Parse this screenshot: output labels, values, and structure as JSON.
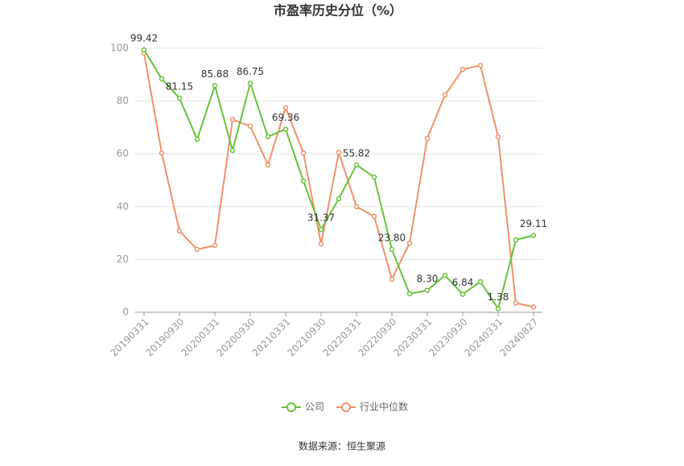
{
  "chart_data": {
    "type": "line",
    "title": "市盈率历史分位（%）",
    "categories": [
      "20190331",
      null,
      "20190930",
      null,
      "20200331",
      null,
      "20200930",
      null,
      "20210331",
      null,
      "20210930",
      null,
      "20220331",
      null,
      "20220930",
      null,
      "20230331",
      null,
      "20230930",
      null,
      "20240331",
      null,
      "20240827"
    ],
    "series": [
      {
        "name": "公司",
        "color": "#67c23a",
        "values": [
          99.42,
          88.4,
          81.15,
          65.5,
          85.88,
          61.3,
          86.75,
          66.5,
          69.36,
          49.7,
          31.37,
          43,
          55.82,
          51.2,
          23.8,
          7,
          8.3,
          14,
          6.84,
          11.6,
          1.38,
          27.4,
          29.11
        ],
        "value_labels": [
          "99.42",
          null,
          "81.15",
          null,
          "85.88",
          null,
          "86.75",
          null,
          "69.36",
          null,
          "31.37",
          null,
          "55.82",
          null,
          "23.80",
          null,
          "8.30",
          null,
          "6.84",
          null,
          "1.38",
          null,
          "29.11"
        ]
      },
      {
        "name": "行业中位数",
        "color": "#f0906a",
        "values": [
          98.2,
          60.3,
          30.8,
          23.8,
          25.3,
          73,
          70.5,
          55.8,
          77.5,
          60.3,
          25.9,
          60.5,
          40,
          36.3,
          12.5,
          26.2,
          65.9,
          82.3,
          92,
          93.5,
          66.5,
          3.5,
          2
        ]
      }
    ],
    "ylim": [
      0,
      100
    ],
    "yticks": [
      0,
      20,
      40,
      60,
      80,
      100
    ],
    "grid": true,
    "source": "数据来源：恒生聚源"
  }
}
